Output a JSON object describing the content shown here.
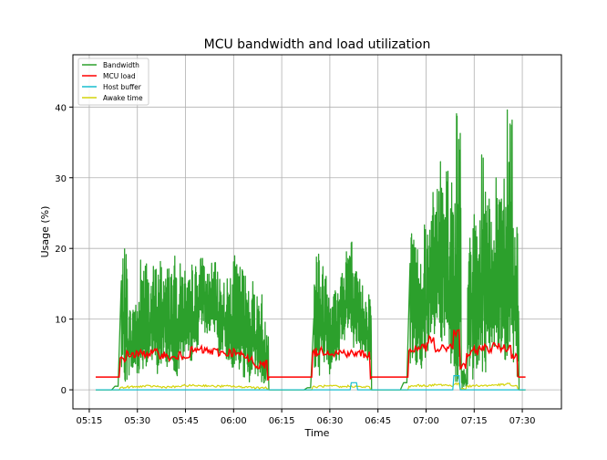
{
  "chart_data": {
    "type": "line",
    "title": "MCU bandwidth and load utilization",
    "xlabel": "Time",
    "ylabel": "Usage (%)",
    "xlim": [
      "05:09.9",
      "07:42.2"
    ],
    "ylim": [
      -2.7,
      47.4
    ],
    "grid": true,
    "legend_position": "top-left",
    "x_ticks": [
      "05:15",
      "05:30",
      "05:45",
      "06:00",
      "06:15",
      "06:30",
      "06:45",
      "07:00",
      "07:15",
      "07:30"
    ],
    "y_ticks": [
      0,
      10,
      20,
      30,
      40
    ],
    "x": [
      "05:17",
      "05:19",
      "05:21",
      "05:23",
      "05:25",
      "05:27",
      "05:29",
      "05:31",
      "05:33",
      "05:35",
      "05:37",
      "05:39",
      "05:41",
      "05:43",
      "05:45",
      "05:47",
      "05:49",
      "05:51",
      "05:53",
      "05:55",
      "05:57",
      "05:59",
      "06:01",
      "06:03",
      "06:05",
      "06:07",
      "06:09",
      "06:11",
      "06:13",
      "06:15",
      "06:17",
      "06:19",
      "06:21",
      "06:23",
      "06:25",
      "06:27",
      "06:29",
      "06:31",
      "06:33",
      "06:35",
      "06:37",
      "06:39",
      "06:41",
      "06:43",
      "06:45",
      "06:47",
      "06:49",
      "06:51",
      "06:53",
      "06:55",
      "06:57",
      "06:59",
      "07:01",
      "07:03",
      "07:05",
      "07:07",
      "07:09",
      "07:11",
      "07:13",
      "07:15",
      "07:17",
      "07:19",
      "07:21",
      "07:23",
      "07:25",
      "07:27",
      "07:29",
      "07:31"
    ],
    "series": [
      {
        "name": "Bandwidth",
        "color": "#2ca02c",
        "kind": "envelope",
        "high": [
          0,
          0,
          0,
          0.5,
          20,
          12,
          14,
          19,
          17,
          18,
          19,
          18,
          19,
          18,
          16,
          18,
          19,
          17,
          18,
          17,
          16,
          19,
          18,
          17,
          16,
          14,
          10,
          0,
          0,
          0,
          0,
          0,
          0,
          0.3,
          22,
          18,
          17,
          15,
          18,
          22,
          17,
          16,
          14,
          0,
          0,
          0,
          0,
          0,
          1,
          24,
          21,
          26,
          28,
          33,
          35,
          30,
          42,
          3,
          24,
          25,
          34,
          27,
          30,
          35,
          45,
          25,
          0,
          0
        ],
        "low": [
          0,
          0,
          0,
          0,
          1,
          2,
          2,
          3,
          3,
          2,
          3,
          3,
          2,
          4,
          4,
          5,
          9,
          8,
          7,
          5,
          4,
          3,
          2,
          1,
          2,
          1,
          0.5,
          0,
          0,
          0,
          0,
          0,
          0,
          0,
          2,
          3,
          2,
          4,
          7,
          8,
          6,
          5,
          4,
          0,
          0,
          0,
          0,
          0,
          0,
          2,
          3,
          1,
          6,
          5,
          4,
          2,
          1,
          0,
          1,
          3,
          2,
          5,
          4,
          3,
          2,
          1,
          0,
          0
        ]
      },
      {
        "name": "MCU load",
        "color": "#ff0000",
        "values": [
          1.8,
          1.8,
          1.8,
          1.8,
          4.5,
          5,
          5,
          5.1,
          5.2,
          5.2,
          5,
          4.6,
          4.4,
          4.8,
          5,
          5.5,
          5.6,
          5.5,
          5.4,
          5.3,
          5.2,
          5.3,
          5,
          4.6,
          4.2,
          3.5,
          3.6,
          1.8,
          1.8,
          1.8,
          1.8,
          1.8,
          1.8,
          1.8,
          5.3,
          5.5,
          5.4,
          5.2,
          5.3,
          5.2,
          5.1,
          5.1,
          5,
          1.8,
          1.8,
          1.8,
          1.8,
          1.8,
          1.8,
          5.5,
          6,
          6,
          7,
          5.6,
          5.8,
          6.2,
          8,
          3.4,
          5,
          5.5,
          6,
          5.8,
          6.2,
          6,
          6,
          5,
          1.8,
          1.8
        ]
      },
      {
        "name": "Host buffer",
        "color": "#17becf",
        "values": [
          0,
          0,
          0,
          0,
          0,
          0,
          0,
          0,
          0,
          0,
          0,
          0,
          0,
          0,
          0,
          0,
          0,
          0,
          0,
          0,
          0,
          0,
          0,
          0,
          0,
          0,
          0,
          0,
          0,
          0,
          0,
          0,
          0,
          0,
          0,
          0,
          0,
          0,
          0,
          0,
          1,
          0,
          0,
          0,
          0,
          0,
          0,
          0,
          0,
          0,
          0,
          0,
          0,
          0,
          0,
          0,
          2,
          0,
          0,
          0,
          0,
          0,
          0,
          0,
          0,
          0,
          0,
          0
        ]
      },
      {
        "name": "Awake time",
        "color": "#d4d40a",
        "values": [
          0,
          0,
          0,
          0,
          0.3,
          0.4,
          0.4,
          0.5,
          0.5,
          0.5,
          0.4,
          0.4,
          0.4,
          0.5,
          0.6,
          0.6,
          0.6,
          0.6,
          0.5,
          0.5,
          0.5,
          0.5,
          0.4,
          0.4,
          0.4,
          0.3,
          0.3,
          0,
          0,
          0,
          0,
          0,
          0,
          0,
          0.4,
          0.5,
          0.5,
          0.5,
          0.4,
          0.5,
          0.5,
          0.4,
          0.4,
          0,
          0,
          0,
          0,
          0,
          0,
          0.5,
          0.6,
          0.6,
          0.6,
          0.7,
          0.7,
          0.6,
          0.8,
          0.2,
          0.5,
          0.6,
          0.6,
          0.6,
          0.7,
          0.7,
          0.8,
          0.5,
          0,
          0
        ]
      }
    ]
  }
}
